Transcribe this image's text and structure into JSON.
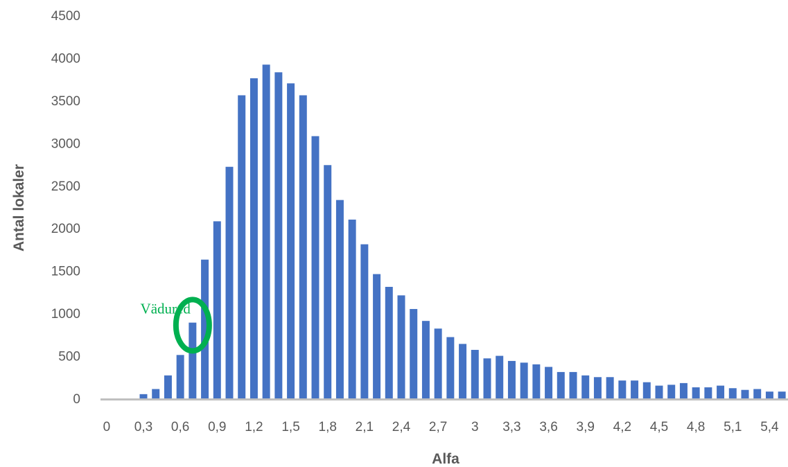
{
  "chart_data": {
    "type": "bar",
    "title": "",
    "xlabel": "Alfa",
    "ylabel": "Antal lokaler",
    "ylim": [
      0,
      4500
    ],
    "yticks": [
      "0",
      "500",
      "1000",
      "1500",
      "2000",
      "2500",
      "3000",
      "3500",
      "4000",
      "4500"
    ],
    "xtick_labels": [
      "0",
      "0,3",
      "0,6",
      "0,9",
      "1,2",
      "1,5",
      "1,8",
      "2,1",
      "2,4",
      "2,7",
      "3",
      "3,3",
      "3,6",
      "3,9",
      "4,2",
      "4,5",
      "4,8",
      "5,1",
      "5,4"
    ],
    "grid": false,
    "bar_color": "#4472c4",
    "axis_color": "#bfbfbf",
    "x": [
      0,
      0.1,
      0.2,
      0.3,
      0.4,
      0.5,
      0.6,
      0.7,
      0.8,
      0.9,
      1.0,
      1.1,
      1.2,
      1.3,
      1.4,
      1.5,
      1.6,
      1.7,
      1.8,
      1.9,
      2.0,
      2.1,
      2.2,
      2.3,
      2.4,
      2.5,
      2.6,
      2.7,
      2.8,
      2.9,
      3.0,
      3.1,
      3.2,
      3.3,
      3.4,
      3.5,
      3.6,
      3.7,
      3.8,
      3.9,
      4.0,
      4.1,
      4.2,
      4.3,
      4.4,
      4.5,
      4.6,
      4.7,
      4.8,
      4.9,
      5.0,
      5.1,
      5.2,
      5.3,
      5.4,
      5.5
    ],
    "values": [
      0,
      0,
      0,
      50,
      110,
      270,
      510,
      890,
      1630,
      2080,
      2720,
      3560,
      3760,
      3920,
      3830,
      3700,
      3560,
      3080,
      2740,
      2330,
      2100,
      1810,
      1460,
      1310,
      1210,
      1050,
      910,
      820,
      720,
      640,
      570,
      470,
      500,
      440,
      420,
      400,
      370,
      310,
      310,
      270,
      250,
      250,
      210,
      210,
      190,
      150,
      160,
      180,
      130,
      130,
      150,
      120,
      100,
      110,
      80,
      80
    ],
    "annotations": [
      {
        "text": "Vädured",
        "color": "#00b050",
        "x": 0.7,
        "y": 900,
        "marker": "ellipse-outline"
      }
    ]
  }
}
